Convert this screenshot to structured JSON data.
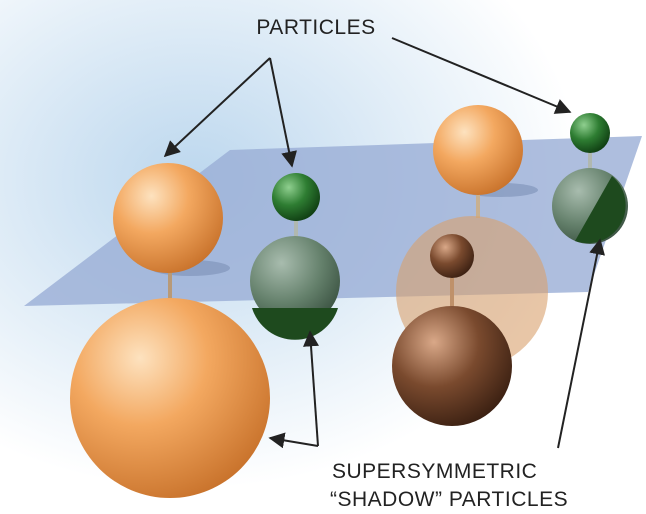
{
  "labels": {
    "particles": "PARTICLES",
    "shadow_line1": "SUPERSYMMETRIC",
    "shadow_line2": "“SHADOW” PARTICLES"
  }
}
